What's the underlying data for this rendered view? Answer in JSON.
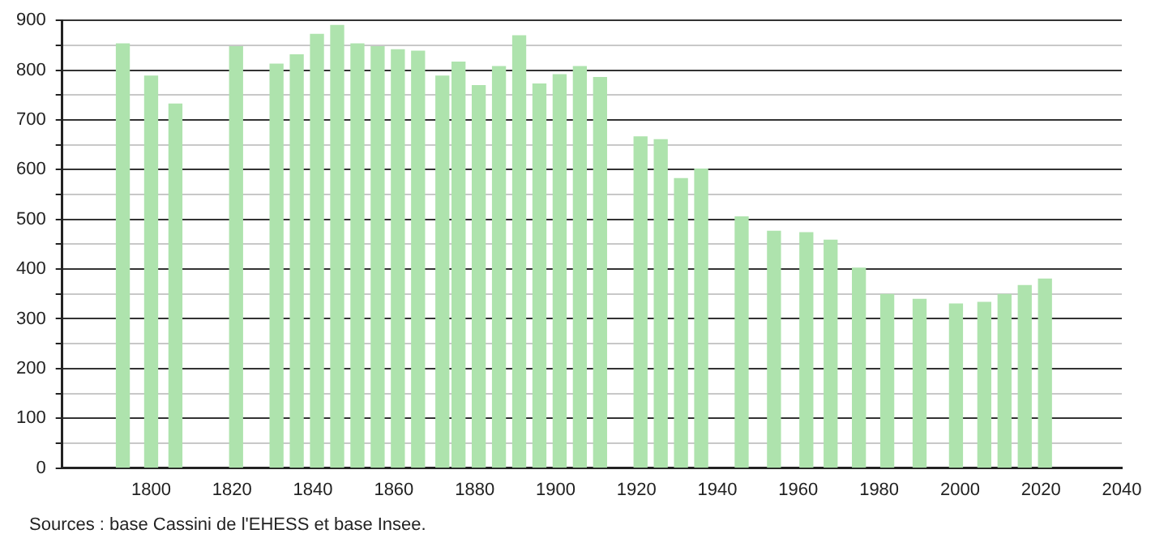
{
  "chart_data": {
    "type": "bar",
    "x": [
      1793,
      1800,
      1806,
      1821,
      1831,
      1836,
      1841,
      1846,
      1851,
      1856,
      1861,
      1866,
      1872,
      1876,
      1881,
      1886,
      1891,
      1896,
      1901,
      1906,
      1911,
      1921,
      1926,
      1931,
      1936,
      1946,
      1954,
      1962,
      1968,
      1975,
      1982,
      1990,
      1999,
      2006,
      2011,
      2016,
      2021
    ],
    "values": [
      853,
      788,
      732,
      847,
      812,
      831,
      872,
      890,
      853,
      847,
      841,
      838,
      788,
      816,
      769,
      807,
      869,
      772,
      791,
      807,
      785,
      666,
      660,
      582,
      601,
      505,
      476,
      473,
      458,
      402,
      349,
      339,
      330,
      333,
      349,
      367,
      380
    ],
    "color": "#aee3ad",
    "xlim": [
      1778,
      2040
    ],
    "xticks": [
      1800,
      1820,
      1840,
      1860,
      1880,
      1900,
      1920,
      1940,
      1960,
      1980,
      2000,
      2020,
      2040
    ],
    "ylim": [
      0,
      900
    ],
    "yticks": [
      0,
      {
        "value": 50,
        "label": null
      },
      100,
      {
        "value": 150,
        "label": null
      },
      200,
      {
        "value": 250,
        "label": null
      },
      300,
      {
        "value": 350,
        "label": null
      },
      400,
      {
        "value": 450,
        "label": null
      },
      500,
      {
        "value": 550,
        "label": null
      },
      600,
      {
        "value": 650,
        "label": null
      },
      700,
      {
        "value": 750,
        "label": null
      },
      800,
      {
        "value": 850,
        "label": null
      },
      900
    ],
    "grid": "y",
    "legend": false,
    "annotations": [
      "Sources : base Cassini de l'EHESS et base Insee."
    ]
  }
}
